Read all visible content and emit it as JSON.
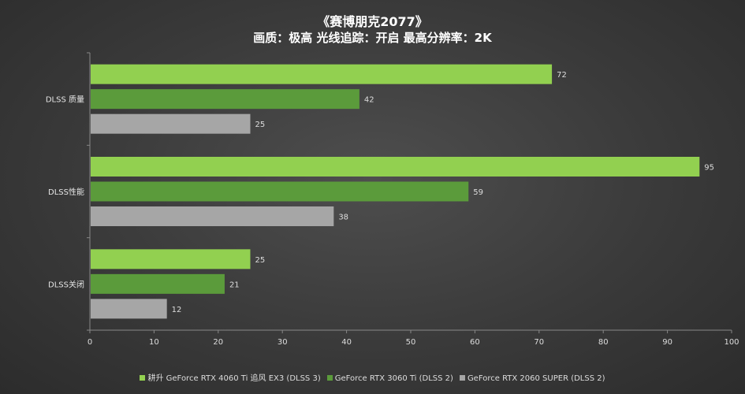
{
  "chart_data": {
    "type": "bar",
    "orientation": "horizontal",
    "title": "《赛博朋克2077》",
    "subtitle": "画质：极高  光线追踪：开启  最高分辨率：2K",
    "categories": [
      "DLSS 质量",
      "DLSS性能",
      "DLSS关闭"
    ],
    "series": [
      {
        "name": "耕升 GeForce RTX 4060 Ti 追风 EX3  (DLSS 3)",
        "color": "#92d050",
        "values": [
          72,
          95,
          25
        ]
      },
      {
        "name": "GeForce RTX 3060 Ti  (DLSS 2)",
        "color": "#5b9b3b",
        "values": [
          42,
          59,
          21
        ]
      },
      {
        "name": "GeForce RTX 2060 SUPER  (DLSS 2)",
        "color": "#a6a6a6",
        "values": [
          25,
          38,
          12
        ]
      }
    ],
    "xlim": [
      0,
      100
    ],
    "xticks": [
      0,
      10,
      20,
      30,
      40,
      50,
      60,
      70,
      80,
      90,
      100
    ],
    "grid": false,
    "legend_position": "bottom"
  }
}
